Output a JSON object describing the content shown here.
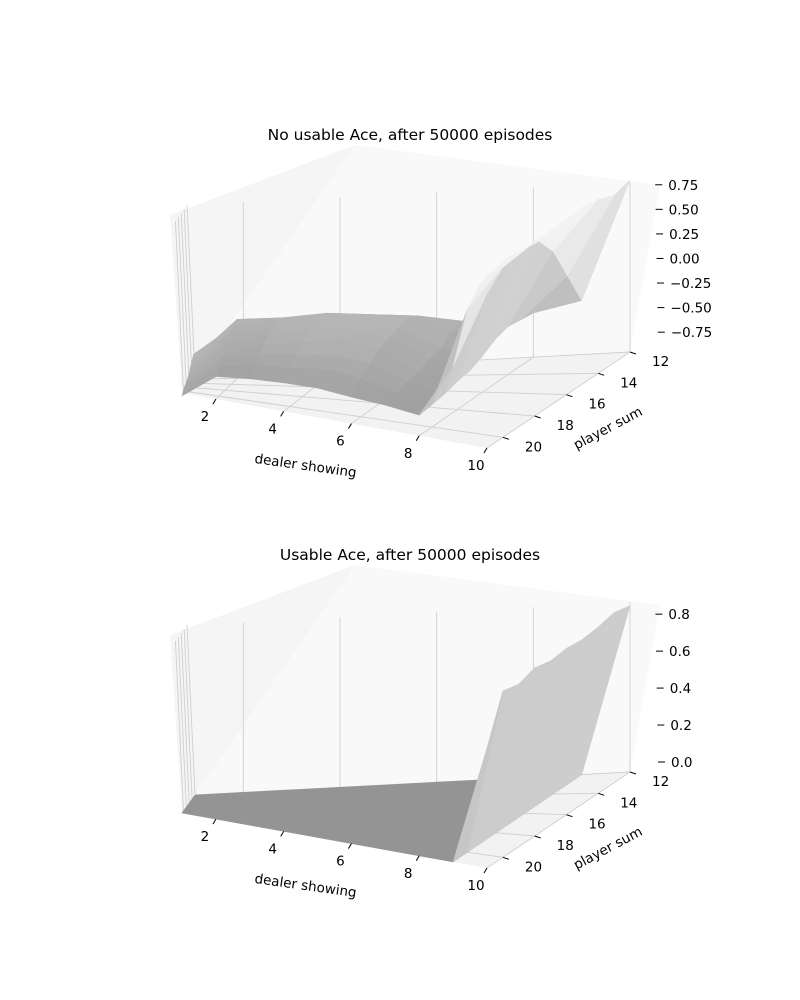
{
  "chart_data": [
    {
      "type": "surface",
      "title": "No usable Ace, after 50000 episodes",
      "xlabel": "dealer showing",
      "ylabel": "player sum",
      "x": [
        1,
        2,
        3,
        4,
        5,
        6,
        7,
        8,
        9,
        10
      ],
      "y": [
        12,
        13,
        14,
        15,
        16,
        17,
        18,
        19,
        20,
        21
      ],
      "x_ticks": [
        "2",
        "4",
        "6",
        "8",
        "10"
      ],
      "y_ticks": [
        "12",
        "14",
        "16",
        "18",
        "20"
      ],
      "z_ticks": [
        "0.75",
        "0.50",
        "0.25",
        "0.00",
        "−0.25",
        "−0.50",
        "−0.75"
      ],
      "zlim": [
        -0.85,
        0.88
      ],
      "z": [
        [
          -0.8,
          -0.35,
          -0.38,
          -0.42,
          -0.45,
          -0.62,
          -0.55,
          -0.4,
          -0.3,
          0.9
        ],
        [
          -0.62,
          -0.3,
          -0.33,
          -0.3,
          -0.32,
          -0.4,
          -0.48,
          -0.38,
          0.05,
          0.85
        ],
        [
          -0.66,
          -0.25,
          -0.24,
          -0.2,
          -0.22,
          -0.24,
          -0.3,
          -0.36,
          0.4,
          0.92
        ],
        [
          -0.7,
          -0.3,
          -0.22,
          -0.18,
          -0.16,
          -0.2,
          -0.32,
          -0.4,
          0.6,
          0.95
        ],
        [
          -0.75,
          -0.32,
          -0.28,
          -0.2,
          -0.18,
          -0.22,
          -0.42,
          -0.48,
          0.62,
          0.93
        ],
        [
          -0.78,
          -0.4,
          -0.3,
          -0.22,
          -0.2,
          -0.25,
          -0.45,
          -0.54,
          0.64,
          0.9
        ],
        [
          -0.8,
          -0.48,
          -0.36,
          -0.3,
          -0.24,
          -0.3,
          -0.5,
          -0.56,
          0.62,
          0.92
        ],
        [
          -0.82,
          -0.5,
          -0.42,
          -0.38,
          -0.34,
          -0.38,
          -0.52,
          -0.6,
          0.58,
          0.9
        ],
        [
          -0.85,
          -0.55,
          -0.48,
          -0.46,
          -0.42,
          -0.46,
          -0.56,
          -0.62,
          0.4,
          0.88
        ],
        [
          -0.88,
          -0.62,
          -0.58,
          -0.56,
          -0.55,
          -0.58,
          -0.6,
          -0.64,
          -0.08,
          0.72
        ]
      ]
    },
    {
      "type": "surface",
      "title": "Usable Ace, after 50000 episodes",
      "xlabel": "dealer showing",
      "ylabel": "player sum",
      "x": [
        1,
        2,
        3,
        4,
        5,
        6,
        7,
        8,
        9,
        10
      ],
      "y": [
        12,
        13,
        14,
        15,
        16,
        17,
        18,
        19,
        20,
        21
      ],
      "x_ticks": [
        "2",
        "4",
        "6",
        "8",
        "10"
      ],
      "y_ticks": [
        "12",
        "14",
        "16",
        "18",
        "20"
      ],
      "z_ticks": [
        "0.8",
        "0.6",
        "0.4",
        "0.2",
        "0.0"
      ],
      "zlim": [
        0.0,
        0.92
      ],
      "z": [
        [
          0,
          0,
          0,
          0,
          0,
          0,
          0,
          0,
          0,
          0.9
        ],
        [
          0,
          0,
          0,
          0,
          0,
          0,
          0,
          0,
          0,
          0.92
        ],
        [
          0,
          0,
          0,
          0,
          0,
          0,
          0,
          0,
          0,
          0.9
        ],
        [
          0,
          0,
          0,
          0,
          0,
          0,
          0,
          0,
          0,
          0.89
        ],
        [
          0,
          0,
          0,
          0,
          0,
          0,
          0,
          0,
          0,
          0.9
        ],
        [
          0,
          0,
          0,
          0,
          0,
          0,
          0,
          0,
          0,
          0.89
        ],
        [
          0,
          0,
          0,
          0,
          0,
          0,
          0,
          0,
          0,
          0.91
        ],
        [
          0,
          0,
          0,
          0,
          0,
          0,
          0,
          0,
          0,
          0.88
        ],
        [
          0,
          0,
          0,
          0,
          0,
          0,
          0,
          0,
          0,
          0.9
        ],
        [
          0,
          0,
          0,
          0,
          0,
          0,
          0,
          0,
          0,
          0.65
        ]
      ]
    }
  ]
}
